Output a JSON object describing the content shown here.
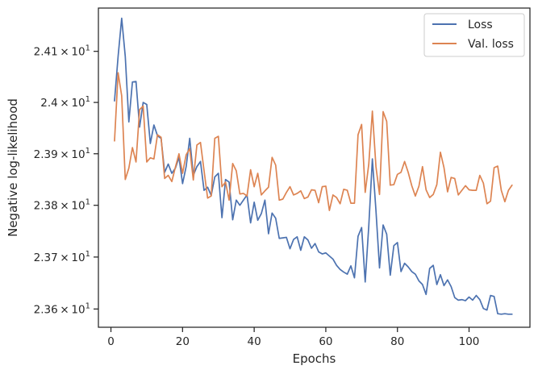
{
  "chart_data": {
    "type": "line",
    "xlabel": "Epochs",
    "ylabel": "Negative log-likelihood",
    "xlim": [
      -3.5,
      117
    ],
    "ylim": [
      23.565,
      24.185
    ],
    "yscale": "log",
    "xticks": [
      0,
      20,
      40,
      60,
      80,
      100
    ],
    "xtick_labels": [
      "0",
      "20",
      "40",
      "60",
      "80",
      "100"
    ],
    "yticks": [
      {
        "value": 23.6,
        "base": "2.36",
        "exp": "1"
      },
      {
        "value": 23.7,
        "base": "2.37",
        "exp": "1"
      },
      {
        "value": 23.8,
        "base": "2.38",
        "exp": "1"
      },
      {
        "value": 23.9,
        "base": "2.39",
        "exp": "1"
      },
      {
        "value": 24.0,
        "base": "2.4",
        "exp": "1"
      },
      {
        "value": 24.1,
        "base": "2.41",
        "exp": "1"
      }
    ],
    "times_sign": "×",
    "tick_base": "10",
    "grid": false,
    "legend_position": "top-right",
    "x": [
      1,
      2,
      3,
      4,
      5,
      6,
      7,
      8,
      9,
      10,
      11,
      12,
      13,
      14,
      15,
      16,
      17,
      18,
      19,
      20,
      21,
      22,
      23,
      24,
      25,
      26,
      27,
      28,
      29,
      30,
      31,
      32,
      33,
      34,
      35,
      36,
      37,
      38,
      39,
      40,
      41,
      42,
      43,
      44,
      45,
      46,
      47,
      48,
      49,
      50,
      51,
      52,
      53,
      54,
      55,
      56,
      57,
      58,
      59,
      60,
      61,
      62,
      63,
      64,
      65,
      66,
      67,
      68,
      69,
      70,
      71,
      72,
      73,
      74,
      75,
      76,
      77,
      78,
      79,
      80,
      81,
      82,
      83,
      84,
      85,
      86,
      87,
      88,
      89,
      90,
      91,
      92,
      93,
      94,
      95,
      96,
      97,
      98,
      99,
      100,
      101,
      102,
      103,
      104,
      105,
      106,
      107,
      108,
      109,
      110,
      111,
      112
    ],
    "series": [
      {
        "name": "Loss",
        "color": "#4c72b0",
        "values": [
          24.003,
          24.09,
          24.165,
          24.09,
          23.962,
          24.04,
          24.041,
          23.952,
          24.0,
          23.996,
          23.92,
          23.956,
          23.935,
          23.93,
          23.864,
          23.88,
          23.862,
          23.872,
          23.893,
          23.842,
          23.875,
          23.93,
          23.858,
          23.875,
          23.885,
          23.829,
          23.835,
          23.819,
          23.855,
          23.862,
          23.776,
          23.85,
          23.845,
          23.772,
          23.81,
          23.8,
          23.81,
          23.82,
          23.766,
          23.806,
          23.771,
          23.784,
          23.81,
          23.745,
          23.785,
          23.775,
          23.736,
          23.737,
          23.738,
          23.716,
          23.734,
          23.739,
          23.713,
          23.739,
          23.733,
          23.717,
          23.726,
          23.71,
          23.706,
          23.708,
          23.702,
          23.696,
          23.684,
          23.676,
          23.671,
          23.667,
          23.683,
          23.66,
          23.74,
          23.757,
          23.652,
          23.76,
          23.89,
          23.79,
          23.679,
          23.762,
          23.744,
          23.665,
          23.722,
          23.728,
          23.672,
          23.688,
          23.681,
          23.672,
          23.667,
          23.654,
          23.647,
          23.628,
          23.678,
          23.684,
          23.647,
          23.666,
          23.645,
          23.656,
          23.643,
          23.622,
          23.617,
          23.618,
          23.616,
          23.623,
          23.617,
          23.626,
          23.618,
          23.601,
          23.598,
          23.626,
          23.624,
          23.591,
          23.59,
          23.591,
          23.59,
          23.59
        ]
      },
      {
        "name": "Val. loss",
        "color": "#dd8452",
        "values": [
          23.925,
          24.058,
          24.013,
          23.85,
          23.872,
          23.912,
          23.884,
          23.986,
          23.993,
          23.884,
          23.892,
          23.89,
          23.937,
          23.932,
          23.852,
          23.858,
          23.846,
          23.874,
          23.9,
          23.862,
          23.898,
          23.91,
          23.849,
          23.917,
          23.922,
          23.867,
          23.814,
          23.818,
          23.93,
          23.934,
          23.836,
          23.845,
          23.81,
          23.881,
          23.867,
          23.822,
          23.823,
          23.818,
          23.869,
          23.836,
          23.862,
          23.82,
          23.828,
          23.835,
          23.893,
          23.878,
          23.81,
          23.812,
          23.825,
          23.836,
          23.82,
          23.823,
          23.828,
          23.813,
          23.816,
          23.83,
          23.829,
          23.805,
          23.836,
          23.837,
          23.79,
          23.82,
          23.815,
          23.803,
          23.831,
          23.829,
          23.804,
          23.804,
          23.937,
          23.957,
          23.825,
          23.88,
          23.983,
          23.875,
          23.821,
          23.982,
          23.963,
          23.839,
          23.84,
          23.86,
          23.864,
          23.885,
          23.864,
          23.838,
          23.818,
          23.837,
          23.875,
          23.83,
          23.815,
          23.821,
          23.84,
          23.903,
          23.873,
          23.826,
          23.854,
          23.852,
          23.82,
          23.829,
          23.838,
          23.83,
          23.829,
          23.829,
          23.858,
          23.843,
          23.803,
          23.808,
          23.873,
          23.876,
          23.829,
          23.807,
          23.829,
          23.839
        ]
      }
    ]
  }
}
